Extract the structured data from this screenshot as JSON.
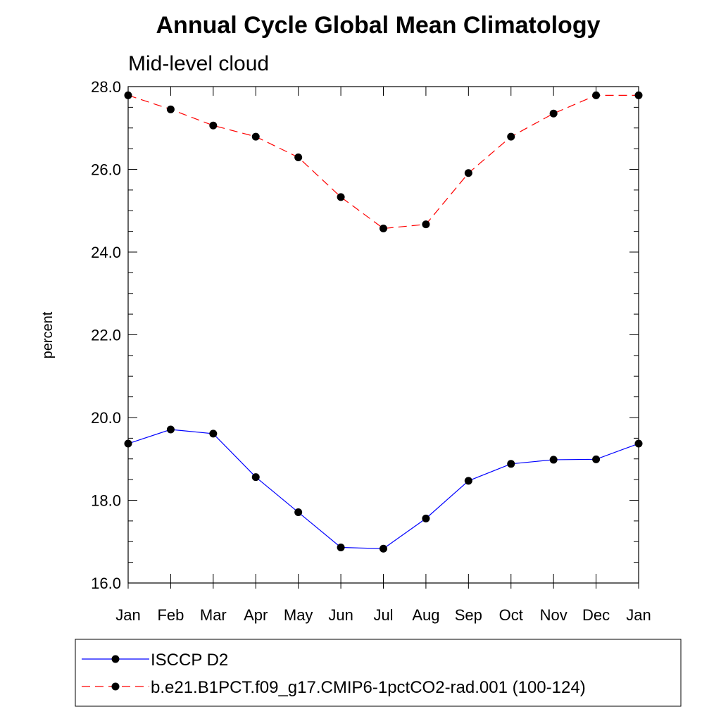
{
  "chart_data": {
    "type": "line",
    "title": "Annual Cycle Global Mean Climatology",
    "subtitle": "Mid-level cloud",
    "xlabel": "",
    "ylabel": "percent",
    "categories": [
      "Jan",
      "Feb",
      "Mar",
      "Apr",
      "May",
      "Jun",
      "Jul",
      "Aug",
      "Sep",
      "Oct",
      "Nov",
      "Dec",
      "Jan"
    ],
    "ylim": [
      16.0,
      28.0
    ],
    "yticks": [
      "16.0",
      "18.0",
      "20.0",
      "22.0",
      "24.0",
      "26.0",
      "28.0"
    ],
    "grid": false,
    "legend_position": "bottom",
    "series": [
      {
        "name": "ISCCP D2",
        "color": "#0000ff",
        "line_style": "solid",
        "marker": "filled-circle",
        "values": [
          19.37,
          19.71,
          19.61,
          18.56,
          17.71,
          16.86,
          16.83,
          17.56,
          18.47,
          18.88,
          18.98,
          18.99,
          19.37
        ]
      },
      {
        "name": "b.e21.B1PCT.f09_g17.CMIP6-1pctCO2-rad.001 (100-124)",
        "color": "#ff0000",
        "line_style": "dashed",
        "marker": "filled-circle",
        "values": [
          27.79,
          27.45,
          27.06,
          26.79,
          26.29,
          25.33,
          24.57,
          24.67,
          25.91,
          26.79,
          27.35,
          27.79,
          27.79
        ]
      }
    ]
  }
}
